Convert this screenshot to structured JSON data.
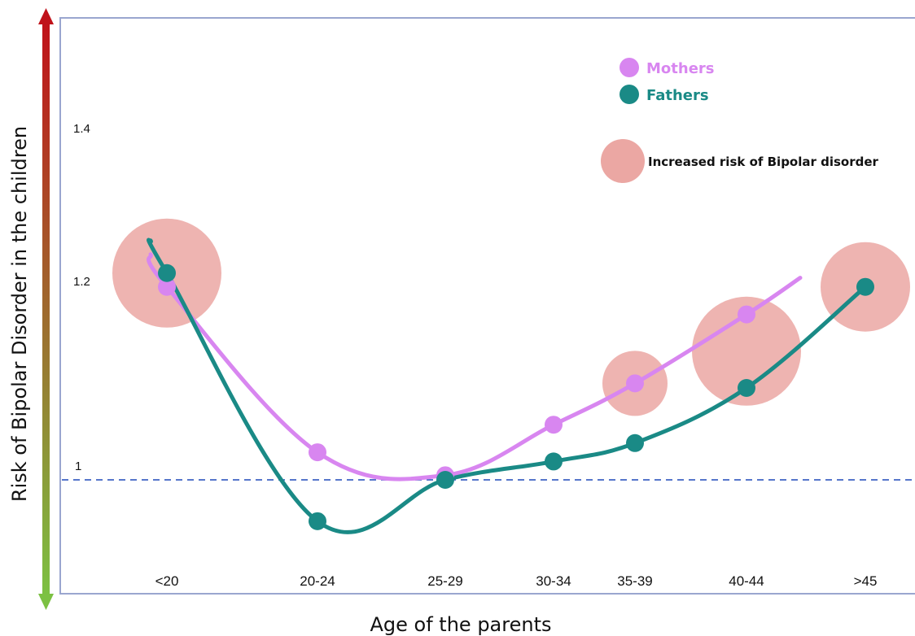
{
  "chart_data": {
    "type": "line",
    "xlabel": "Age of the parents",
    "ylabel": "Risk of Bipolar Disorder in the children",
    "categories": [
      "<20",
      "20-24",
      "25-29",
      "30-34",
      "35-39",
      "40-44",
      ">45"
    ],
    "y_ticks": [
      "1",
      "1.2",
      "1.4"
    ],
    "y_tick_values": [
      1,
      1.2,
      1.4
    ],
    "reference_line": 1,
    "series": [
      {
        "name": "Mothers",
        "color": "#d886f0",
        "points": [
          {
            "x": "<20",
            "y": 1.21
          },
          {
            "x": "20-24",
            "y": 1.03
          },
          {
            "x": "25-29",
            "y": 1.005
          },
          {
            "x": "30-34",
            "y": 1.06
          },
          {
            "x": "35-39",
            "y": 1.105
          },
          {
            "x": "40-44",
            "y": 1.18
          }
        ]
      },
      {
        "name": "Fathers",
        "color": "#1a8a86",
        "points": [
          {
            "x": "<20",
            "y": 1.225
          },
          {
            "x": "20-24",
            "y": 0.955
          },
          {
            "x": "25-29",
            "y": 1.0
          },
          {
            "x": "30-34",
            "y": 1.02
          },
          {
            "x": "35-39",
            "y": 1.04
          },
          {
            "x": "40-44",
            "y": 1.1
          },
          {
            "x": ">45",
            "y": 1.21
          }
        ]
      }
    ],
    "risk_highlights": [
      {
        "x": "<20",
        "y": 1.225,
        "level": "large"
      },
      {
        "x": "35-39",
        "y": 1.105,
        "level": "small"
      },
      {
        "x": "40-44",
        "y": 1.14,
        "level": "large"
      },
      {
        "x": ">45",
        "y": 1.21,
        "level": "medium"
      }
    ],
    "legend": {
      "placement": "top-right",
      "risk_label": "Increased risk of Bipolar disorder",
      "risk_color": "#eba7a3"
    },
    "gradient_axis": {
      "top_color": "#c0121a",
      "bottom_color": "#7cc142"
    }
  }
}
